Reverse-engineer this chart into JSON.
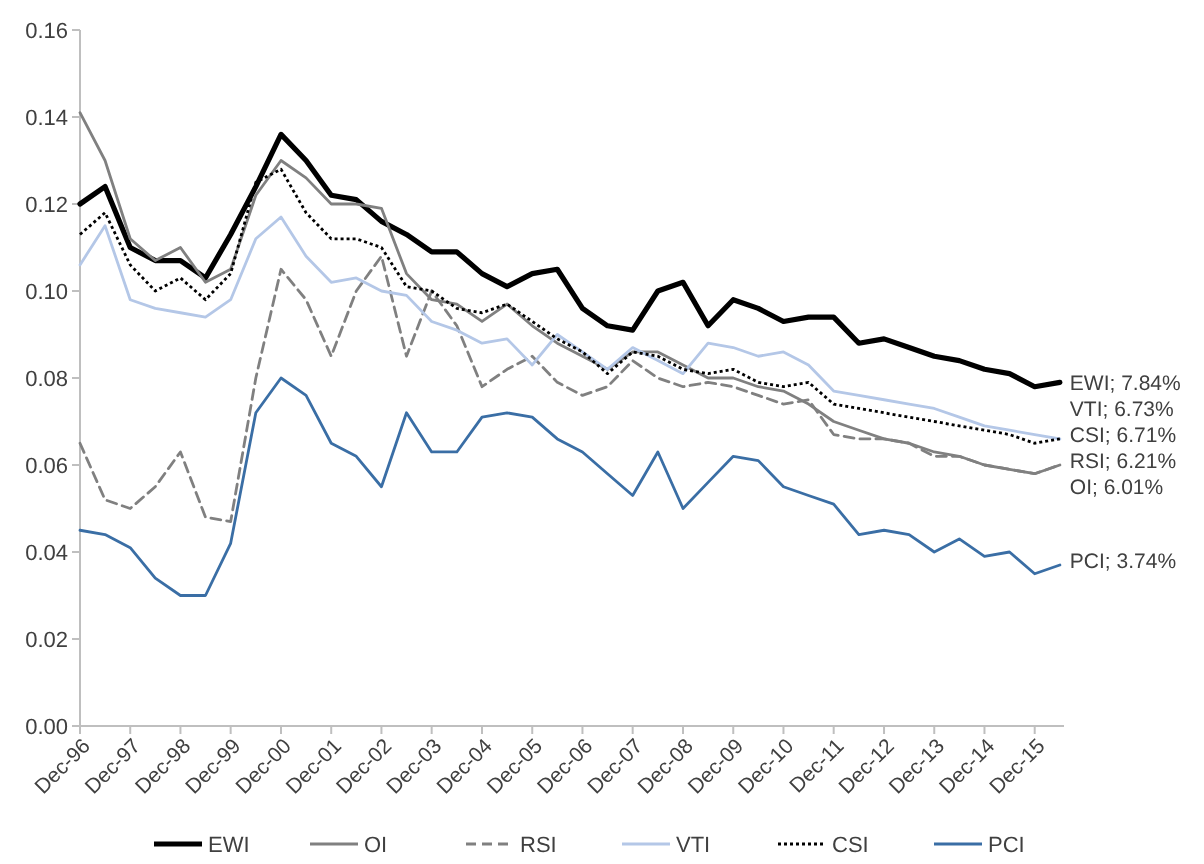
{
  "chart_data": {
    "type": "line",
    "x": [
      "1996-12",
      "1997-06",
      "1997-12",
      "1998-06",
      "1998-12",
      "1999-06",
      "1999-12",
      "2000-06",
      "2000-12",
      "2001-06",
      "2001-12",
      "2002-06",
      "2002-12",
      "2003-06",
      "2003-12",
      "2004-06",
      "2004-12",
      "2005-06",
      "2005-12",
      "2006-06",
      "2006-12",
      "2007-06",
      "2007-12",
      "2008-06",
      "2008-12",
      "2009-06",
      "2009-12",
      "2010-06",
      "2010-12",
      "2011-06",
      "2011-12",
      "2012-06",
      "2012-12",
      "2013-06",
      "2013-12",
      "2014-06",
      "2014-12",
      "2015-06",
      "2015-12",
      "2016-06"
    ],
    "series": [
      {
        "name": "EWI",
        "color": "#000000",
        "line_style": "solid",
        "values": [
          0.12,
          0.124,
          0.11,
          0.107,
          0.107,
          0.103,
          0.113,
          0.124,
          0.136,
          0.13,
          0.122,
          0.121,
          0.116,
          0.113,
          0.109,
          0.109,
          0.104,
          0.101,
          0.104,
          0.105,
          0.096,
          0.092,
          0.091,
          0.1,
          0.102,
          0.092,
          0.098,
          0.096,
          0.093,
          0.094,
          0.094,
          0.088,
          0.089,
          0.087,
          0.085,
          0.084,
          0.082,
          0.081,
          0.078,
          0.079
        ]
      },
      {
        "name": "OI",
        "color": "#808080",
        "line_style": "solid",
        "values": [
          0.141,
          0.13,
          0.112,
          0.107,
          0.11,
          0.102,
          0.105,
          0.122,
          0.13,
          0.126,
          0.12,
          0.12,
          0.119,
          0.104,
          0.098,
          0.097,
          0.093,
          0.097,
          0.092,
          0.088,
          0.085,
          0.082,
          0.086,
          0.086,
          0.083,
          0.08,
          0.08,
          0.078,
          0.077,
          0.074,
          0.07,
          0.068,
          0.066,
          0.065,
          0.063,
          0.062,
          0.06,
          0.059,
          0.058,
          0.06
        ]
      },
      {
        "name": "RSI",
        "color": "#808080",
        "line_style": "dashed",
        "values": [
          0.065,
          0.052,
          0.05,
          0.055,
          0.063,
          0.048,
          0.047,
          0.08,
          0.105,
          0.098,
          0.085,
          0.1,
          0.108,
          0.085,
          0.1,
          0.092,
          0.078,
          0.082,
          0.085,
          0.079,
          0.076,
          0.078,
          0.084,
          0.08,
          0.078,
          0.079,
          0.078,
          0.076,
          0.074,
          0.075,
          0.067,
          0.066,
          0.066,
          0.065,
          0.062,
          0.062,
          0.06,
          0.059,
          0.058,
          0.06
        ]
      },
      {
        "name": "VTI",
        "color": "#b4c7e7",
        "line_style": "solid",
        "values": [
          0.106,
          0.115,
          0.098,
          0.096,
          0.095,
          0.094,
          0.098,
          0.112,
          0.117,
          0.108,
          0.102,
          0.103,
          0.1,
          0.099,
          0.093,
          0.091,
          0.088,
          0.089,
          0.083,
          0.09,
          0.086,
          0.082,
          0.087,
          0.084,
          0.081,
          0.088,
          0.087,
          0.085,
          0.086,
          0.083,
          0.077,
          0.076,
          0.075,
          0.074,
          0.073,
          0.071,
          0.069,
          0.068,
          0.067,
          0.066
        ]
      },
      {
        "name": "CSI",
        "color": "#000000",
        "line_style": "dotted",
        "values": [
          0.113,
          0.118,
          0.106,
          0.1,
          0.103,
          0.098,
          0.104,
          0.125,
          0.128,
          0.118,
          0.112,
          0.112,
          0.11,
          0.101,
          0.1,
          0.096,
          0.095,
          0.097,
          0.093,
          0.089,
          0.086,
          0.081,
          0.086,
          0.085,
          0.082,
          0.081,
          0.082,
          0.079,
          0.078,
          0.079,
          0.074,
          0.073,
          0.072,
          0.071,
          0.07,
          0.069,
          0.068,
          0.067,
          0.065,
          0.066
        ]
      },
      {
        "name": "PCI",
        "color": "#3a6ea5",
        "line_style": "solid",
        "values": [
          0.045,
          0.044,
          0.041,
          0.034,
          0.03,
          0.03,
          0.042,
          0.072,
          0.08,
          0.076,
          0.065,
          0.062,
          0.055,
          0.072,
          0.063,
          0.063,
          0.071,
          0.072,
          0.071,
          0.066,
          0.063,
          0.058,
          0.053,
          0.063,
          0.05,
          0.056,
          0.062,
          0.061,
          0.055,
          0.053,
          0.051,
          0.044,
          0.045,
          0.044,
          0.04,
          0.043,
          0.039,
          0.04,
          0.035,
          0.037
        ]
      }
    ],
    "xlim": [
      "1996-12",
      "2016-07"
    ],
    "xticks": [
      {
        "value": "1996-12",
        "label": "Dec-96"
      },
      {
        "value": "1997-12",
        "label": "Dec-97"
      },
      {
        "value": "1998-12",
        "label": "Dec-98"
      },
      {
        "value": "1999-12",
        "label": "Dec-99"
      },
      {
        "value": "2000-12",
        "label": "Dec-00"
      },
      {
        "value": "2001-12",
        "label": "Dec-01"
      },
      {
        "value": "2002-12",
        "label": "Dec-02"
      },
      {
        "value": "2003-12",
        "label": "Dec-03"
      },
      {
        "value": "2004-12",
        "label": "Dec-04"
      },
      {
        "value": "2005-12",
        "label": "Dec-05"
      },
      {
        "value": "2006-12",
        "label": "Dec-06"
      },
      {
        "value": "2007-12",
        "label": "Dec-07"
      },
      {
        "value": "2008-12",
        "label": "Dec-08"
      },
      {
        "value": "2009-12",
        "label": "Dec-09"
      },
      {
        "value": "2010-12",
        "label": "Dec-10"
      },
      {
        "value": "2011-12",
        "label": "Dec-11"
      },
      {
        "value": "2012-12",
        "label": "Dec-12"
      },
      {
        "value": "2013-12",
        "label": "Dec-13"
      },
      {
        "value": "2014-12",
        "label": "Dec-14"
      },
      {
        "value": "2015-12",
        "label": "Dec-15"
      }
    ],
    "ylim": [
      0,
      0.16
    ],
    "yticks": [
      {
        "value": 0,
        "label": "0.00"
      },
      {
        "value": 0.02,
        "label": "0.02"
      },
      {
        "value": 0.04,
        "label": "0.04"
      },
      {
        "value": 0.06,
        "label": "0.06"
      },
      {
        "value": 0.08,
        "label": "0.08"
      },
      {
        "value": 0.1,
        "label": "0.10"
      },
      {
        "value": 0.12,
        "label": "0.12"
      },
      {
        "value": 0.14,
        "label": "0.14"
      },
      {
        "value": 0.16,
        "label": "0.16"
      }
    ],
    "grid": false,
    "legend": "bottom",
    "marker": "none",
    "annotations": [
      {
        "text": "EWI; 7.84%",
        "x": "2016-06",
        "y": 0.079
      },
      "VTI; 6.73%",
      {
        "text": "CSI; 6.71%",
        "x": "2016-06",
        "y": 0.067
      },
      {
        "text": "RSI; 6.21%",
        "x": "2016-06",
        "y": 0.061
      },
      "OI; 6.01%",
      {
        "text": "PCI; 3.74%",
        "x": "2016-06",
        "y": 0.038
      }
    ]
  }
}
